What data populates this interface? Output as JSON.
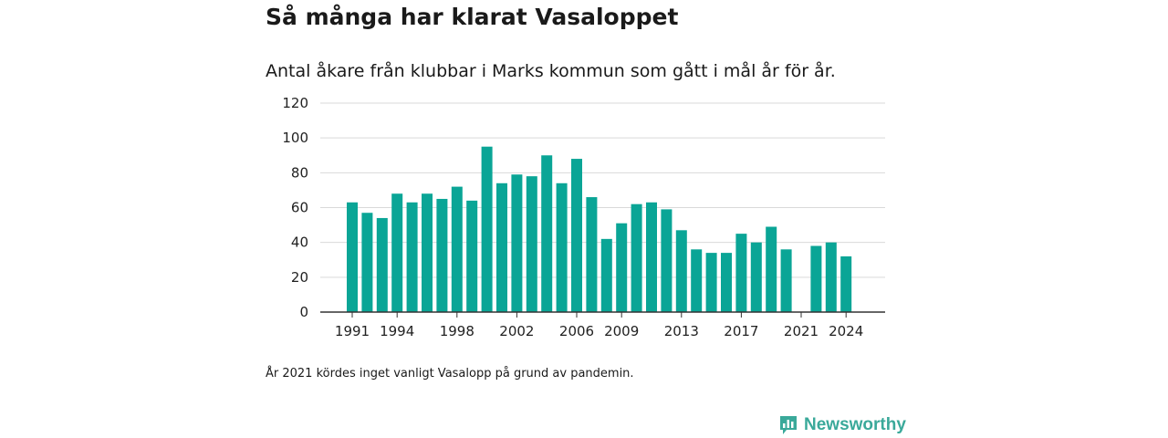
{
  "header": {
    "title": "Så många har klarat Vasaloppet",
    "subtitle": "Antal åkare från klubbar i Marks kommun som gått i mål år för år."
  },
  "footer": {
    "note": "År 2021 kördes inget vanligt Vasalopp på grund av pandemin.",
    "brand": "Newsworthy"
  },
  "colors": {
    "bar": "#0aa596",
    "grid": "#d9d9d9",
    "axis": "#333333",
    "brand": "#3aa99a"
  },
  "chart_data": {
    "type": "bar",
    "categories": [
      1991,
      1992,
      1993,
      1994,
      1995,
      1996,
      1997,
      1998,
      1999,
      2000,
      2001,
      2002,
      2003,
      2004,
      2005,
      2006,
      2007,
      2008,
      2009,
      2010,
      2011,
      2012,
      2013,
      2014,
      2015,
      2016,
      2017,
      2018,
      2019,
      2020,
      2021,
      2022,
      2023,
      2024
    ],
    "values": [
      63,
      57,
      54,
      68,
      63,
      68,
      65,
      72,
      64,
      95,
      74,
      79,
      78,
      90,
      74,
      88,
      66,
      42,
      51,
      62,
      63,
      59,
      47,
      36,
      34,
      34,
      45,
      40,
      49,
      36,
      0,
      38,
      40,
      32
    ],
    "x_tick_labels": [
      "1991",
      "1994",
      "1998",
      "2002",
      "2006",
      "2009",
      "2013",
      "2017",
      "2021",
      "2024"
    ],
    "y_ticks": [
      0,
      20,
      40,
      60,
      80,
      100,
      120
    ],
    "ylim": [
      0,
      120
    ],
    "grid": true,
    "legend": "none"
  }
}
